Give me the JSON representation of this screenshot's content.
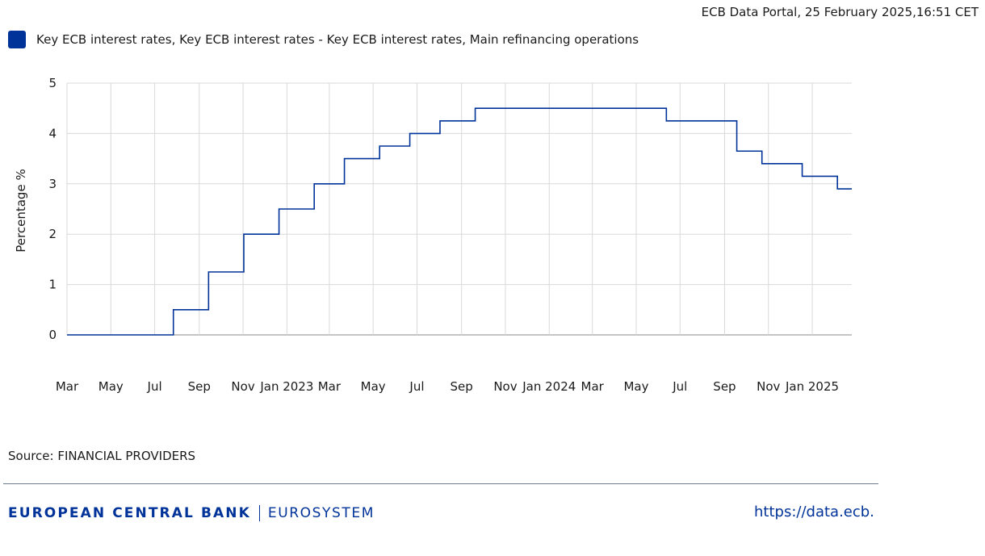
{
  "header": {
    "timestamp": "ECB Data Portal, 25 February 2025,16:51 CET"
  },
  "legend": {
    "label": "Key ECB interest rates, Key ECB interest rates - Key ECB interest rates, Main refinancing operations",
    "color": "#003399"
  },
  "chart_data": {
    "type": "line",
    "step": "after",
    "xlabel": "",
    "ylabel": "Percentage %",
    "ylim": [
      0,
      5
    ],
    "yticks": [
      0,
      1,
      2,
      3,
      4,
      5
    ],
    "xlim": [
      "2022-03-01",
      "2025-02-25"
    ],
    "grid": true,
    "legend_position": "top-left",
    "x_tick_labels": [
      {
        "date": "2022-03-01",
        "label": "Mar"
      },
      {
        "date": "2022-05-01",
        "label": "May"
      },
      {
        "date": "2022-07-01",
        "label": "Jul"
      },
      {
        "date": "2022-09-01",
        "label": "Sep"
      },
      {
        "date": "2022-11-01",
        "label": "Nov"
      },
      {
        "date": "2023-01-01",
        "label": "Jan 2023"
      },
      {
        "date": "2023-03-01",
        "label": "Mar"
      },
      {
        "date": "2023-05-01",
        "label": "May"
      },
      {
        "date": "2023-07-01",
        "label": "Jul"
      },
      {
        "date": "2023-09-01",
        "label": "Sep"
      },
      {
        "date": "2023-11-01",
        "label": "Nov"
      },
      {
        "date": "2024-01-01",
        "label": "Jan 2024"
      },
      {
        "date": "2024-03-01",
        "label": "Mar"
      },
      {
        "date": "2024-05-01",
        "label": "May"
      },
      {
        "date": "2024-07-01",
        "label": "Jul"
      },
      {
        "date": "2024-09-01",
        "label": "Sep"
      },
      {
        "date": "2024-11-01",
        "label": "Nov"
      },
      {
        "date": "2025-01-01",
        "label": "Jan 2025"
      }
    ],
    "series": [
      {
        "name": "Key ECB interest rates, Main refinancing operations",
        "color": "#003399",
        "points": [
          {
            "x": "2022-03-01",
            "y": 0.0
          },
          {
            "x": "2022-07-27",
            "y": 0.5
          },
          {
            "x": "2022-09-14",
            "y": 1.25
          },
          {
            "x": "2022-11-02",
            "y": 2.0
          },
          {
            "x": "2022-12-21",
            "y": 2.5
          },
          {
            "x": "2023-02-08",
            "y": 3.0
          },
          {
            "x": "2023-03-22",
            "y": 3.5
          },
          {
            "x": "2023-05-10",
            "y": 3.75
          },
          {
            "x": "2023-06-21",
            "y": 4.0
          },
          {
            "x": "2023-08-02",
            "y": 4.25
          },
          {
            "x": "2023-09-20",
            "y": 4.5
          },
          {
            "x": "2024-06-12",
            "y": 4.25
          },
          {
            "x": "2024-09-18",
            "y": 3.65
          },
          {
            "x": "2024-10-23",
            "y": 3.4
          },
          {
            "x": "2024-12-18",
            "y": 3.15
          },
          {
            "x": "2025-02-05",
            "y": 2.9
          },
          {
            "x": "2025-02-25",
            "y": 2.9
          }
        ]
      }
    ]
  },
  "footer": {
    "source": "Source: FINANCIAL PROVIDERS",
    "brand_bank": "EUROPEAN CENTRAL BANK",
    "brand_eurosystem": "EUROSYSTEM",
    "brand_color": "#003399",
    "url": "https://data.ecb.",
    "url_color": "#003399",
    "rule_color": "#6c7a8c"
  }
}
